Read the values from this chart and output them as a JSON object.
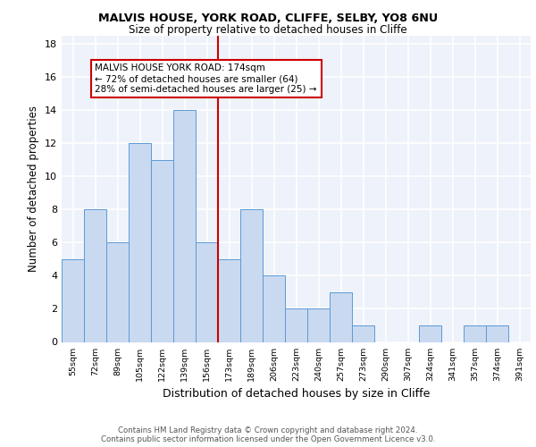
{
  "title1": "MALVIS HOUSE, YORK ROAD, CLIFFE, SELBY, YO8 6NU",
  "title2": "Size of property relative to detached houses in Cliffe",
  "xlabel": "Distribution of detached houses by size in Cliffe",
  "ylabel": "Number of detached properties",
  "categories": [
    "55sqm",
    "72sqm",
    "89sqm",
    "105sqm",
    "122sqm",
    "139sqm",
    "156sqm",
    "173sqm",
    "189sqm",
    "206sqm",
    "223sqm",
    "240sqm",
    "257sqm",
    "273sqm",
    "290sqm",
    "307sqm",
    "324sqm",
    "341sqm",
    "357sqm",
    "374sqm",
    "391sqm"
  ],
  "values": [
    5,
    8,
    6,
    12,
    11,
    14,
    6,
    5,
    8,
    4,
    2,
    2,
    3,
    1,
    0,
    0,
    1,
    0,
    1,
    1,
    0
  ],
  "bar_color": "#c9d9f0",
  "bar_edge_color": "#5b9bd5",
  "vline_color": "#cc0000",
  "annotation_text": "MALVIS HOUSE YORK ROAD: 174sqm\n← 72% of detached houses are smaller (64)\n28% of semi-detached houses are larger (25) →",
  "ylim": [
    0,
    18.5
  ],
  "yticks": [
    0,
    2,
    4,
    6,
    8,
    10,
    12,
    14,
    16,
    18
  ],
  "background_color": "#eef2fa",
  "grid_color": "#ffffff",
  "footer": "Contains HM Land Registry data © Crown copyright and database right 2024.\nContains public sector information licensed under the Open Government Licence v3.0."
}
